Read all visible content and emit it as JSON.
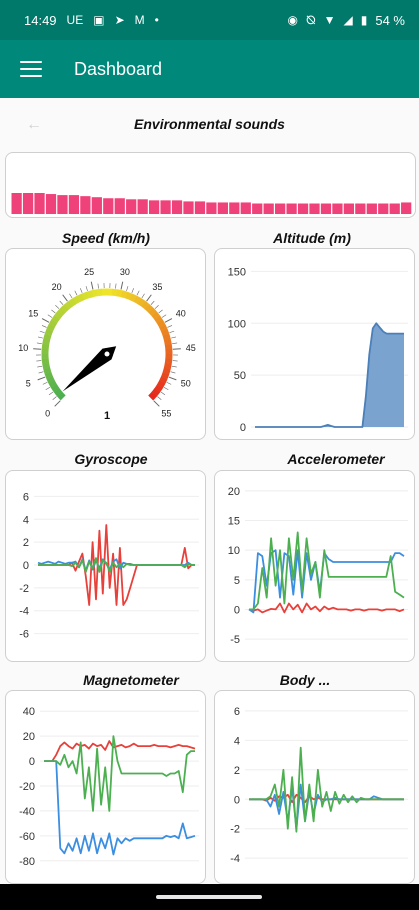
{
  "status_bar": {
    "time": "14:49",
    "carrier": "UE",
    "battery": "54 %",
    "left_icons": [
      "teams-icon",
      "send-icon",
      "gmail-icon",
      "dot-icon"
    ],
    "right_icons": [
      "location-icon",
      "mute-icon",
      "wifi-icon",
      "signal-icon",
      "battery-icon"
    ]
  },
  "app_bar": {
    "title": "Dashboard",
    "menu_icon": "hamburger-menu-icon",
    "color": "#00897b",
    "status_color": "#00796b"
  },
  "sections": {
    "sounds": "Environmental sounds",
    "speed": "Speed (km/h)",
    "altitude": "Altitude (m)",
    "gyroscope": "Gyroscope",
    "accelerometer": "Accelerometer",
    "magnetometer": "Magnetometer",
    "body": "Body ..."
  },
  "colors": {
    "sound_bar": "#f0427a",
    "altitude_fill": "#7ba3cf",
    "altitude_line": "#4a7fb8",
    "series_x": "#e8403a",
    "series_y": "#3b8ee0",
    "series_z": "#4caf50",
    "needle": "#000000"
  },
  "chart_data": [
    {
      "type": "bar",
      "title": "Environmental sounds",
      "values": [
        20,
        20,
        20,
        19,
        18,
        18,
        17,
        16,
        15,
        15,
        14,
        14,
        13,
        13,
        13,
        12,
        12,
        11,
        11,
        11,
        11,
        10,
        10,
        10,
        10,
        10,
        10,
        10,
        10,
        10,
        10,
        10,
        10,
        10,
        11
      ]
    },
    {
      "type": "gauge",
      "title": "Speed (km/h)",
      "value": 1,
      "min": 0,
      "max": 55,
      "tick_labels": [
        "0",
        "5",
        "10",
        "15",
        "20",
        "25",
        "30",
        "35",
        "40",
        "45",
        "50",
        "55"
      ]
    },
    {
      "type": "area",
      "title": "Altitude (m)",
      "yticks": [
        0,
        50,
        100,
        150
      ],
      "ylim": [
        0,
        160
      ],
      "values": [
        0,
        0,
        0,
        0,
        0,
        0,
        0,
        0,
        0,
        0,
        0,
        0,
        0,
        0,
        0,
        0,
        0,
        0,
        0,
        0,
        1,
        2,
        1,
        0,
        0,
        0,
        0,
        0,
        0,
        0,
        0,
        0,
        30,
        70,
        95,
        100,
        96,
        92,
        90,
        90,
        90,
        90,
        90,
        90
      ]
    },
    {
      "type": "line",
      "title": "Gyroscope",
      "yticks": [
        6,
        4,
        2,
        0,
        -2,
        -4,
        -6
      ],
      "ylim": [
        -7,
        7
      ],
      "series": [
        {
          "values": [
            0,
            0,
            0,
            0,
            0,
            0,
            0,
            0,
            0,
            0,
            0.2,
            -0.5,
            0.3,
            1,
            -1,
            -3.5,
            2,
            -3,
            3,
            -2.5,
            3.5,
            -2,
            1,
            -3.5,
            1.5,
            -3.5,
            -3,
            -2,
            -1,
            0,
            0,
            0,
            0,
            0,
            0,
            0,
            0,
            0,
            0,
            0,
            0,
            0,
            0,
            1.5,
            -0.3,
            0,
            0
          ]
        },
        {
          "values": [
            0.2,
            0.1,
            0.2,
            0.3,
            0.2,
            0.1,
            0.3,
            0.2,
            0.1,
            0.2,
            0.2,
            0.3,
            -0.2,
            0.5,
            -0.5,
            0.4,
            -0.4,
            0.4,
            -0.3,
            0.5,
            0.1,
            -0.4,
            0.3,
            0.5,
            -0.3,
            0.2,
            0.1,
            0.1,
            0,
            0,
            0,
            0,
            0,
            0,
            0,
            0,
            0,
            0,
            0,
            0,
            0,
            0,
            0,
            0,
            0.2,
            0,
            0
          ]
        },
        {
          "values": [
            0,
            0,
            0,
            0,
            0,
            0,
            0,
            0,
            0,
            0,
            -0.1,
            0.2,
            -0.2,
            0.4,
            -0.6,
            0.3,
            -0.3,
            0.6,
            -0.6,
            0.4,
            0.2,
            -0.6,
            0.2,
            -0.2,
            0.1,
            -0.2,
            0.1,
            0,
            0,
            0,
            0,
            0,
            0,
            0,
            0,
            0,
            0,
            0,
            0,
            0,
            0,
            0,
            0,
            -0.2,
            0.1,
            0,
            0
          ]
        }
      ]
    },
    {
      "type": "line",
      "title": "Accelerometer",
      "yticks": [
        20,
        15,
        10,
        5,
        0,
        -5
      ],
      "ylim": [
        -6,
        21
      ],
      "series": [
        {
          "values": [
            0,
            -0.2,
            0,
            -0.5,
            -0.2,
            0.1,
            0,
            1,
            -0.5,
            1,
            0,
            0.8,
            -0.5,
            1,
            0,
            0.5,
            -0.3,
            0.5,
            0,
            0.3,
            0,
            0,
            0,
            -0.2,
            0,
            0,
            -0.2,
            0,
            0,
            0,
            -0.2,
            0,
            0,
            0,
            -0.3,
            0
          ]
        },
        {
          "values": [
            0,
            -0.5,
            9.5,
            9,
            4,
            9.5,
            10,
            2,
            9.5,
            9,
            2.5,
            10,
            2,
            9.5,
            5,
            8,
            3,
            9.5,
            8.5,
            8,
            8,
            8,
            8,
            8,
            8,
            8,
            8,
            8,
            8,
            8,
            8,
            8,
            8,
            9.5,
            9.5,
            9
          ]
        },
        {
          "values": [
            0,
            0,
            1,
            7,
            2,
            12,
            4,
            10,
            1,
            12,
            5,
            13,
            3,
            12,
            6,
            8,
            2,
            10,
            5.5,
            5.5,
            5.5,
            5.5,
            5.5,
            5.5,
            5.5,
            5.5,
            5.5,
            5.5,
            5.5,
            5.5,
            5.5,
            5.5,
            9,
            3,
            2.5,
            2
          ]
        }
      ]
    },
    {
      "type": "line",
      "title": "Magnetometer",
      "yticks": [
        40,
        20,
        0,
        -20,
        -40,
        -60,
        -80
      ],
      "ylim": [
        -85,
        45
      ],
      "series": [
        {
          "values": [
            0,
            0,
            0,
            5,
            12,
            15,
            12,
            10,
            14,
            12,
            13,
            10,
            14,
            12,
            13,
            9,
            16,
            11,
            12,
            13,
            11,
            12,
            14,
            12,
            12,
            12,
            12,
            13,
            12,
            12,
            12,
            11,
            12,
            13,
            12,
            12,
            11,
            10
          ]
        },
        {
          "values": [
            0,
            0,
            0,
            0,
            -70,
            -74,
            -66,
            -72,
            -62,
            -74,
            -60,
            -72,
            -58,
            -74,
            -62,
            -70,
            -58,
            -75,
            -62,
            -66,
            -62,
            -64,
            -62,
            -62,
            -62,
            -62,
            -62,
            -62,
            -62,
            -62,
            -60,
            -61,
            -60,
            -62,
            -50,
            -62,
            -61,
            -60
          ]
        },
        {
          "values": [
            0,
            0,
            0,
            0,
            -3,
            5,
            -5,
            0,
            -10,
            15,
            -30,
            -5,
            -40,
            10,
            -35,
            -5,
            -40,
            20,
            0,
            -10,
            -10,
            -10,
            -10,
            -10,
            -10,
            -10,
            -10,
            -10,
            -10,
            -10,
            -12,
            -10,
            -10,
            -8,
            -25,
            5,
            8,
            8
          ]
        }
      ]
    },
    {
      "type": "line",
      "title": "Body ...",
      "yticks": [
        6,
        4,
        2,
        0,
        -2,
        -4
      ],
      "ylim": [
        -4.6,
        6.4
      ],
      "series": [
        {
          "values": [
            0,
            0,
            0,
            0,
            -0.1,
            0.1,
            -0.1,
            0.2,
            0.1,
            0.3,
            -0.2,
            0.3,
            0.1,
            -0.2,
            0.2,
            0,
            0.1,
            0,
            0,
            0,
            0,
            0,
            0,
            0,
            0,
            0,
            0,
            0,
            0,
            0,
            0,
            0,
            0,
            0,
            0,
            0,
            0
          ]
        },
        {
          "values": [
            0,
            0,
            0,
            0,
            0,
            -0.5,
            0.3,
            -1,
            0.5,
            -1.5,
            0.8,
            -2,
            1,
            -1.5,
            0.5,
            -1,
            0.3,
            -0.2,
            0,
            0,
            0.1,
            0,
            0,
            0,
            0,
            0,
            0,
            0,
            0,
            0.2,
            0.1,
            0,
            0,
            0,
            0,
            0,
            0
          ]
        },
        {
          "values": [
            0,
            0,
            0,
            0,
            0,
            0.2,
            1,
            -0.5,
            2,
            -2,
            1.5,
            -2.2,
            3.5,
            -1.5,
            1,
            -1.5,
            2,
            -0.5,
            0.5,
            -0.8,
            0.5,
            -0.3,
            0.3,
            -0.2,
            0.2,
            -0.2,
            0.1,
            0,
            0,
            0,
            0,
            0,
            0,
            0,
            0,
            0,
            0
          ]
        }
      ]
    }
  ]
}
